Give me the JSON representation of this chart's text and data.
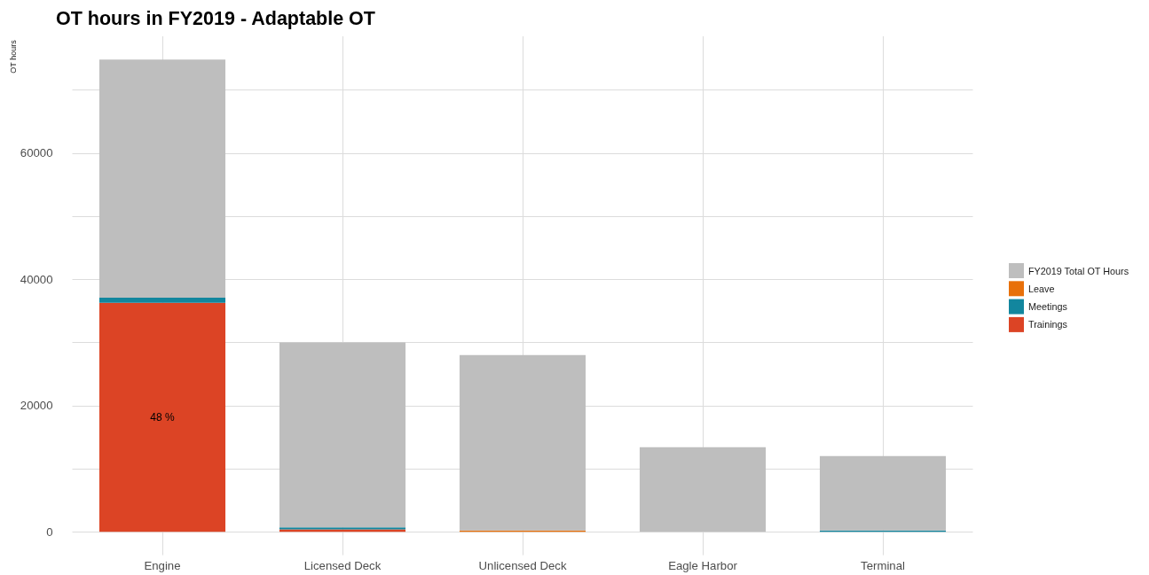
{
  "chart_data": {
    "type": "bar",
    "title": "OT hours in FY2019 - Adaptable OT",
    "ylabel": "OT hours",
    "categories": [
      "Engine",
      "Licensed Deck",
      "Unlicensed Deck",
      "Eagle Harbor",
      "Terminal"
    ],
    "stacked": true,
    "series": [
      {
        "name": "Trainings",
        "color": "#dc4425",
        "values": [
          36300,
          400,
          0,
          0,
          0
        ]
      },
      {
        "name": "Meetings",
        "color": "#12869e",
        "values": [
          800,
          300,
          0,
          0,
          200
        ]
      },
      {
        "name": "Leave",
        "color": "#e8700a",
        "values": [
          0,
          0,
          200,
          0,
          0
        ]
      },
      {
        "name": "FY2019 Total OT Hours",
        "color": "#bebebe",
        "values": [
          37700,
          29300,
          27800,
          13400,
          11800
        ]
      }
    ],
    "annotations": [
      "48 %"
    ],
    "ylim": [
      -3700,
      78500
    ],
    "yticks": [
      0,
      {
        "value": 10000,
        "label": null
      },
      20000,
      {
        "value": 30000,
        "label": null
      },
      40000,
      {
        "value": 50000,
        "label": null
      },
      60000,
      {
        "value": 70000,
        "label": null
      }
    ],
    "grid": true,
    "legend": "right"
  }
}
